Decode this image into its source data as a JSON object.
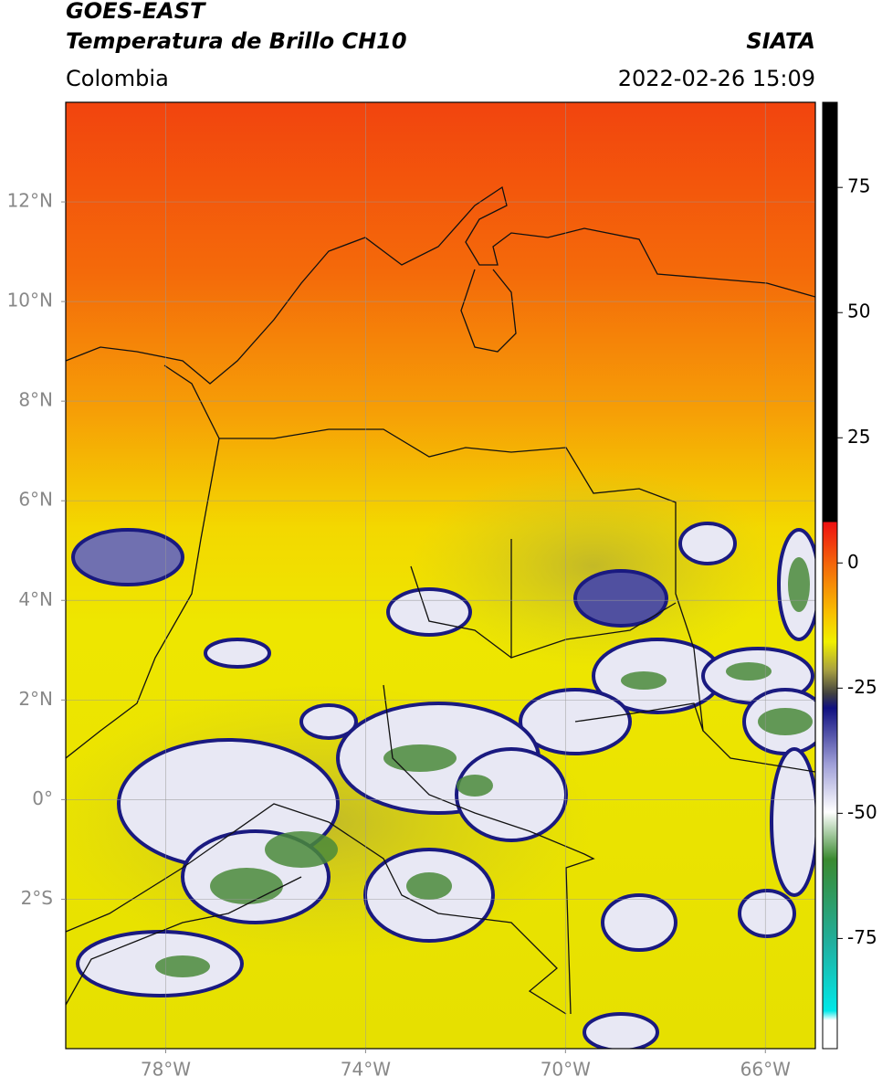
{
  "header": {
    "title": "GOES-EAST",
    "subtitle": "Temperatura de Brillo CH10",
    "source": "SIATA",
    "region": "Colombia",
    "datetime": "2022-02-26 15:09"
  },
  "map": {
    "lon_range": [
      -80,
      -65
    ],
    "lat_range": [
      -5,
      14
    ],
    "lon_ticks": [
      {
        "value": -78,
        "label": "78°W"
      },
      {
        "value": -74,
        "label": "74°W"
      },
      {
        "value": -70,
        "label": "70°W"
      },
      {
        "value": -66,
        "label": "66°W"
      }
    ],
    "lat_ticks": [
      {
        "value": 12,
        "label": "12°N"
      },
      {
        "value": 10,
        "label": "10°N"
      },
      {
        "value": 8,
        "label": "8°N"
      },
      {
        "value": 6,
        "label": "6°N"
      },
      {
        "value": 4,
        "label": "4°N"
      },
      {
        "value": 2,
        "label": "2°N"
      },
      {
        "value": 0,
        "label": "0°"
      },
      {
        "value": -2,
        "label": "2°S"
      }
    ]
  },
  "colorbar": {
    "range": [
      -97,
      92
    ],
    "ticks": [
      75,
      50,
      25,
      0,
      -25,
      -50,
      -75
    ]
  }
}
